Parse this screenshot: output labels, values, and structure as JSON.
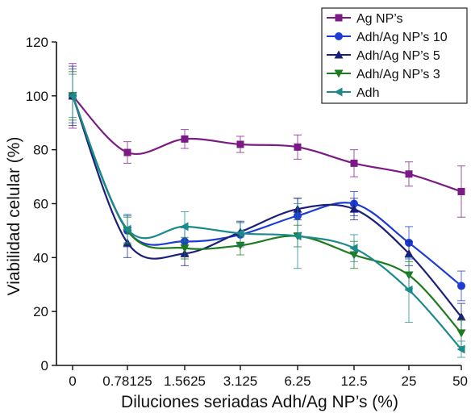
{
  "chart_data": {
    "type": "line",
    "title": "",
    "xlabel": "Diluciones seriadas Adh/Ag NP’s (%)",
    "ylabel": "Viabilidad celular (%)",
    "categories": [
      "0",
      "0.78125",
      "1.5625",
      "3.125",
      "6.25",
      "12.5",
      "25",
      "50"
    ],
    "ylim": [
      0,
      120
    ],
    "yticks": [
      0,
      20,
      40,
      60,
      80,
      100,
      120
    ],
    "grid": false,
    "legend_position": "top-right",
    "series": [
      {
        "name": "Ag NP’s",
        "color": "#7b1a84",
        "marker": "square",
        "values": [
          100,
          79,
          84,
          82,
          81,
          75,
          71,
          64.5
        ],
        "errors": [
          12,
          4,
          3.5,
          3,
          4.5,
          5,
          4.5,
          9.5
        ]
      },
      {
        "name": "Adh/Ag NP’s 10",
        "color": "#1c3cd6",
        "marker": "circle",
        "values": [
          100,
          50,
          46,
          48.5,
          55.5,
          60,
          45.5,
          29.5
        ],
        "errors": [
          10,
          6,
          5,
          4.5,
          6.5,
          4.5,
          6,
          5.5
        ]
      },
      {
        "name": "Adh/Ag NP’s 5",
        "color": "#1a1f7a",
        "marker": "triangle-up",
        "values": [
          100,
          45.5,
          41.5,
          49.5,
          58,
          58,
          41.5,
          18
        ],
        "errors": [
          11,
          5.5,
          4.5,
          4,
          4,
          4,
          4.5,
          5
        ]
      },
      {
        "name": "Adh/Ag NP’s 3",
        "color": "#1e7a1e",
        "marker": "triangle-down",
        "values": [
          100,
          50,
          43.5,
          44.5,
          48,
          41,
          33.5,
          12
        ],
        "errors": [
          9,
          5,
          4,
          3.5,
          4,
          5,
          5,
          5
        ]
      },
      {
        "name": "Adh",
        "color": "#1a8a8a",
        "marker": "triangle-left",
        "values": [
          100,
          50.5,
          51.5,
          49,
          48,
          43.5,
          28,
          6
        ],
        "errors": [
          8,
          5,
          5.5,
          4,
          12,
          5,
          12,
          3
        ]
      }
    ]
  }
}
